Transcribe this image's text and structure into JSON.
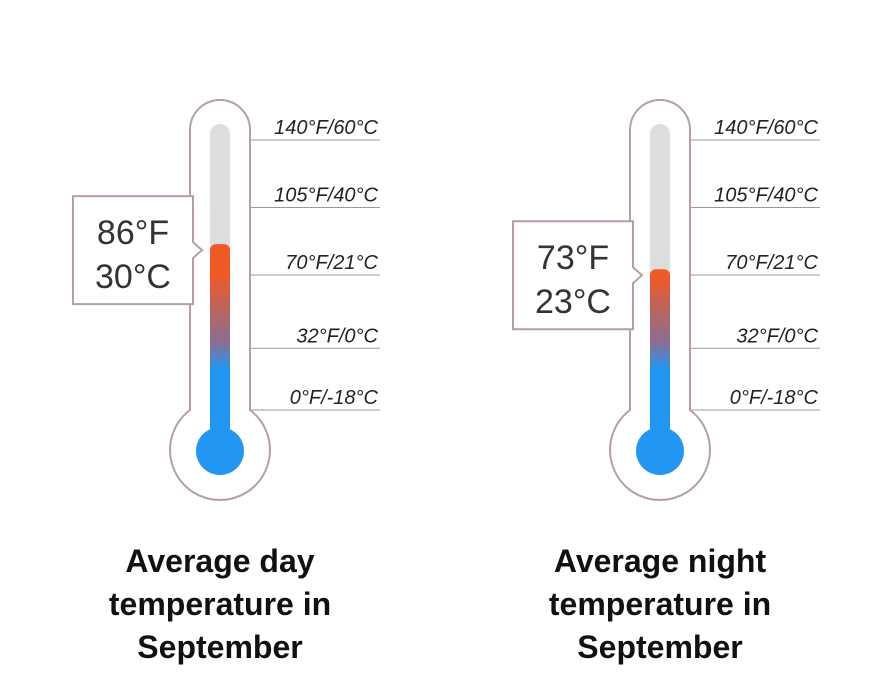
{
  "scale": {
    "ticks": [
      {
        "label": "140°F/60°C",
        "f": 140
      },
      {
        "label": "105°F/40°C",
        "f": 105
      },
      {
        "label": "70°F/21°C",
        "f": 70
      },
      {
        "label": "32°F/0°C",
        "f": 32
      },
      {
        "label": "0°F/-18°C",
        "f": 0
      }
    ]
  },
  "colors": {
    "outline": "#b5a0a0",
    "track": "#dddddd",
    "cold": "#2196f3",
    "hot": "#f15a24",
    "tick_line": "#999999"
  },
  "thermometers": [
    {
      "readout_f": "86°F",
      "readout_c": "30°C",
      "value_f": 86,
      "caption_lines": [
        "Average day",
        "temperature in",
        "September"
      ]
    },
    {
      "readout_f": "73°F",
      "readout_c": "23°C",
      "value_f": 73,
      "caption_lines": [
        "Average night",
        "temperature in",
        "September"
      ]
    }
  ]
}
